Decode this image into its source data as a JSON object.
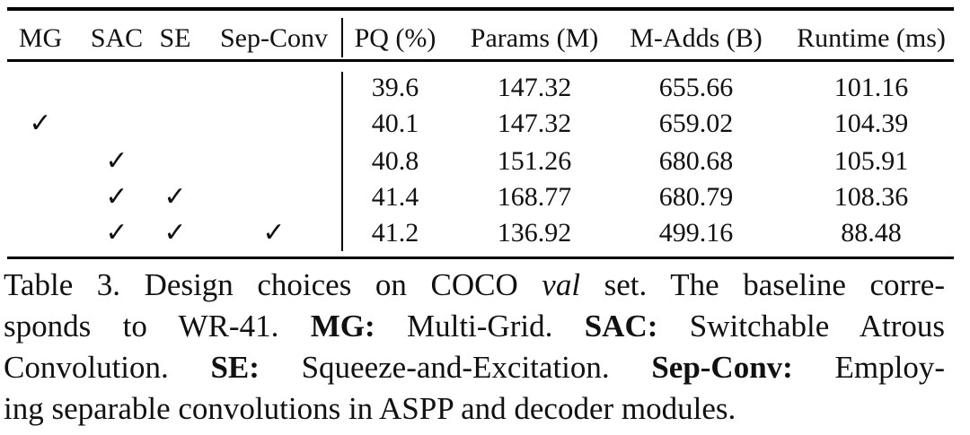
{
  "table": {
    "header": [
      "MG",
      "SAC",
      "SE",
      "Sep-Conv",
      "PQ (%)",
      "Params (M)",
      "M-Adds (B)",
      "Runtime (ms)"
    ],
    "rows": [
      [
        null,
        null,
        null,
        null,
        "39.6",
        "147.32",
        "655.66",
        "101.16"
      ],
      [
        "✓",
        null,
        null,
        null,
        "40.1",
        "147.32",
        "659.02",
        "104.39"
      ],
      [
        null,
        "✓",
        null,
        null,
        "40.8",
        "151.26",
        "680.68",
        "105.91"
      ],
      [
        null,
        "✓",
        "✓",
        null,
        "41.4",
        "168.77",
        "680.79",
        "108.36"
      ],
      [
        null,
        "✓",
        "✓",
        "✓",
        "41.2",
        "136.92",
        "499.16",
        "88.48"
      ]
    ]
  },
  "caption": {
    "lines": [
      [
        {
          "text": "Table 3. Design choices on COCO "
        },
        {
          "text": "val",
          "style": "italic"
        },
        {
          "text": " set.  The baseline corre-"
        }
      ],
      [
        {
          "text": "sponds to WR-41.  "
        },
        {
          "text": "MG:",
          "style": "bold"
        },
        {
          "text": " Multi-Grid.  "
        },
        {
          "text": "SAC:",
          "style": "bold"
        },
        {
          "text": " Switchable Atrous"
        }
      ],
      [
        {
          "text": "Convolution.  "
        },
        {
          "text": "SE:",
          "style": "bold"
        },
        {
          "text": " Squeeze-and-Excitation.  "
        },
        {
          "text": "Sep-Conv:",
          "style": "bold"
        },
        {
          "text": " Employ-"
        }
      ],
      [
        {
          "text": "ing separable convolutions in ASPP and decoder modules."
        }
      ]
    ]
  }
}
